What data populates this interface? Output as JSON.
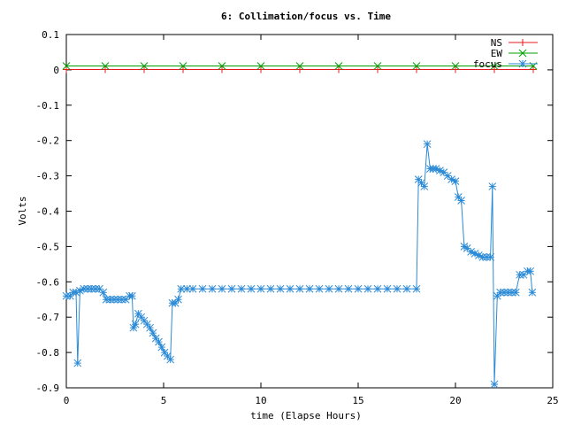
{
  "chart_data": {
    "type": "line",
    "title": "6: Collimation/focus vs. Time",
    "xlabel": "time (Elapse Hours)",
    "ylabel": "Volts",
    "xlim": [
      0,
      25
    ],
    "ylim": [
      -0.9,
      0.1
    ],
    "x_ticks": [
      0,
      5,
      10,
      15,
      20,
      25
    ],
    "y_ticks": [
      0.1,
      0,
      -0.1,
      -0.2,
      -0.3,
      -0.4,
      -0.5,
      -0.6,
      -0.7,
      -0.8,
      -0.9
    ],
    "x_tick_labels": [
      "0",
      "5",
      "10",
      "15",
      "20",
      "25"
    ],
    "y_tick_labels": [
      "0.1",
      "0",
      "-0.1",
      "-0.2",
      "-0.3",
      "-0.4",
      "-0.5",
      "-0.6",
      "-0.7",
      "-0.8",
      "-0.9"
    ],
    "grid": false,
    "legend_position": "top-right",
    "series": [
      {
        "name": "NS",
        "color": "#e41a1c",
        "marker": "plus",
        "points": [
          [
            0,
            0.001
          ],
          [
            2,
            0.001
          ],
          [
            4,
            0.001
          ],
          [
            6,
            0.001
          ],
          [
            8,
            0.001
          ],
          [
            10,
            0.001
          ],
          [
            12,
            0.001
          ],
          [
            14,
            0.001
          ],
          [
            16,
            0.001
          ],
          [
            18,
            0.001
          ],
          [
            20,
            0.001
          ],
          [
            22,
            0.001
          ],
          [
            24,
            0.001
          ]
        ]
      },
      {
        "name": "EW",
        "color": "#00a000",
        "marker": "cross",
        "points": [
          [
            0,
            0.011
          ],
          [
            2,
            0.011
          ],
          [
            4,
            0.011
          ],
          [
            6,
            0.011
          ],
          [
            8,
            0.011
          ],
          [
            10,
            0.011
          ],
          [
            12,
            0.011
          ],
          [
            14,
            0.011
          ],
          [
            16,
            0.011
          ],
          [
            18,
            0.011
          ],
          [
            20,
            0.011
          ],
          [
            22,
            0.011
          ],
          [
            24,
            0.011
          ]
        ]
      },
      {
        "name": "focus",
        "color": "#2b8ad6",
        "marker": "star",
        "points": [
          [
            0.0,
            -0.64
          ],
          [
            0.2,
            -0.64
          ],
          [
            0.35,
            -0.63
          ],
          [
            0.5,
            -0.63
          ],
          [
            0.58,
            -0.83
          ],
          [
            0.7,
            -0.625
          ],
          [
            0.9,
            -0.62
          ],
          [
            1.1,
            -0.62
          ],
          [
            1.3,
            -0.62
          ],
          [
            1.5,
            -0.62
          ],
          [
            1.7,
            -0.62
          ],
          [
            1.9,
            -0.63
          ],
          [
            2.05,
            -0.65
          ],
          [
            2.25,
            -0.65
          ],
          [
            2.45,
            -0.65
          ],
          [
            2.65,
            -0.65
          ],
          [
            2.85,
            -0.65
          ],
          [
            3.05,
            -0.65
          ],
          [
            3.25,
            -0.64
          ],
          [
            3.38,
            -0.64
          ],
          [
            3.45,
            -0.73
          ],
          [
            3.55,
            -0.72
          ],
          [
            3.7,
            -0.69
          ],
          [
            3.85,
            -0.7
          ],
          [
            4.0,
            -0.71
          ],
          [
            4.15,
            -0.72
          ],
          [
            4.3,
            -0.73
          ],
          [
            4.45,
            -0.745
          ],
          [
            4.6,
            -0.76
          ],
          [
            4.75,
            -0.77
          ],
          [
            4.9,
            -0.785
          ],
          [
            5.05,
            -0.8
          ],
          [
            5.2,
            -0.81
          ],
          [
            5.35,
            -0.82
          ],
          [
            5.45,
            -0.66
          ],
          [
            5.6,
            -0.66
          ],
          [
            5.75,
            -0.65
          ],
          [
            5.9,
            -0.62
          ],
          [
            6.2,
            -0.62
          ],
          [
            6.5,
            -0.62
          ],
          [
            7.0,
            -0.62
          ],
          [
            7.5,
            -0.62
          ],
          [
            8.0,
            -0.62
          ],
          [
            8.5,
            -0.62
          ],
          [
            9.0,
            -0.62
          ],
          [
            9.5,
            -0.62
          ],
          [
            10.0,
            -0.62
          ],
          [
            10.5,
            -0.62
          ],
          [
            11.0,
            -0.62
          ],
          [
            11.5,
            -0.62
          ],
          [
            12.0,
            -0.62
          ],
          [
            12.5,
            -0.62
          ],
          [
            13.0,
            -0.62
          ],
          [
            13.5,
            -0.62
          ],
          [
            14.0,
            -0.62
          ],
          [
            14.5,
            -0.62
          ],
          [
            15.0,
            -0.62
          ],
          [
            15.5,
            -0.62
          ],
          [
            16.0,
            -0.62
          ],
          [
            16.5,
            -0.62
          ],
          [
            17.0,
            -0.62
          ],
          [
            17.5,
            -0.62
          ],
          [
            18.0,
            -0.62
          ],
          [
            18.1,
            -0.31
          ],
          [
            18.25,
            -0.32
          ],
          [
            18.4,
            -0.33
          ],
          [
            18.55,
            -0.21
          ],
          [
            18.7,
            -0.28
          ],
          [
            18.85,
            -0.28
          ],
          [
            19.0,
            -0.28
          ],
          [
            19.2,
            -0.285
          ],
          [
            19.4,
            -0.29
          ],
          [
            19.6,
            -0.3
          ],
          [
            19.8,
            -0.31
          ],
          [
            20.0,
            -0.315
          ],
          [
            20.15,
            -0.36
          ],
          [
            20.3,
            -0.37
          ],
          [
            20.45,
            -0.5
          ],
          [
            20.6,
            -0.505
          ],
          [
            20.8,
            -0.515
          ],
          [
            21.0,
            -0.52
          ],
          [
            21.2,
            -0.525
          ],
          [
            21.4,
            -0.53
          ],
          [
            21.6,
            -0.53
          ],
          [
            21.8,
            -0.53
          ],
          [
            21.9,
            -0.33
          ],
          [
            22.0,
            -0.89
          ],
          [
            22.15,
            -0.64
          ],
          [
            22.3,
            -0.63
          ],
          [
            22.5,
            -0.63
          ],
          [
            22.7,
            -0.63
          ],
          [
            22.9,
            -0.63
          ],
          [
            23.1,
            -0.63
          ],
          [
            23.3,
            -0.58
          ],
          [
            23.5,
            -0.58
          ],
          [
            23.7,
            -0.57
          ],
          [
            23.85,
            -0.57
          ],
          [
            23.95,
            -0.63
          ]
        ]
      }
    ]
  }
}
